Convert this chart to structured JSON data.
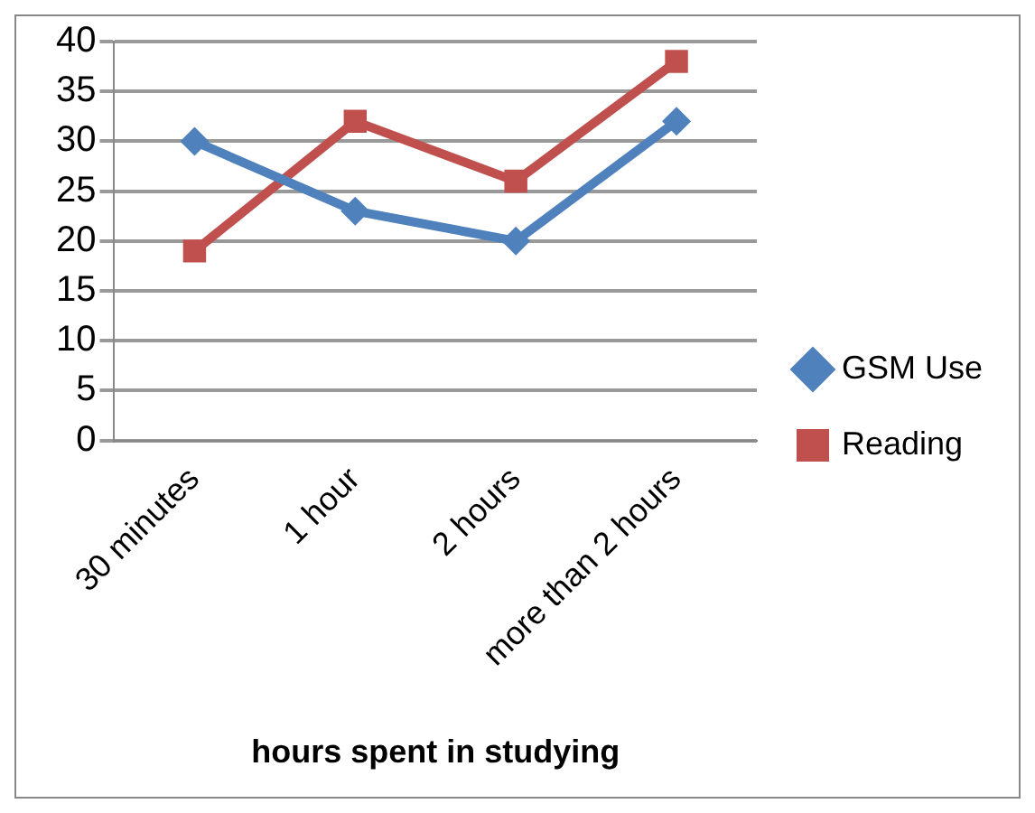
{
  "chart_data": {
    "type": "line",
    "xlabel": "hours spent in studying",
    "categories": [
      "30 minutes",
      "1 hour",
      "2 hours",
      "more than 2 hours"
    ],
    "series": [
      {
        "name": "GSM Use",
        "color": "#4f81bd",
        "values": [
          30,
          23,
          20,
          32
        ],
        "marker": "diamond"
      },
      {
        "name": "Reading",
        "color": "#c0504d",
        "values": [
          19,
          32,
          26,
          38
        ],
        "marker": "square"
      }
    ],
    "ylim": [
      0,
      40
    ],
    "yticks": [
      0,
      5,
      10,
      15,
      20,
      25,
      30,
      35,
      40
    ],
    "grid": "y",
    "legend": "right"
  }
}
